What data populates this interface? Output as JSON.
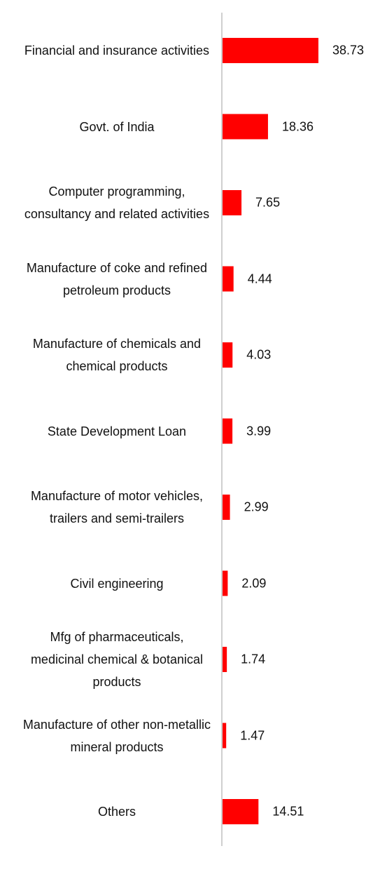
{
  "chart_data": {
    "type": "bar",
    "orientation": "horizontal",
    "color": "#ff0000",
    "categories": [
      "Financial and insurance activities",
      "Govt. of India",
      "Computer programming, consultancy and related activities",
      "Manufacture of coke and refined petroleum products",
      "Manufacture of chemicals and chemical products",
      "State Development Loan",
      "Manufacture of motor vehicles, trailers and semi-trailers",
      "Civil engineering",
      "Mfg of pharmaceuticals, medicinal chemical & botanical products",
      "Manufacture of other non-metallic mineral products",
      "Others"
    ],
    "values": [
      38.73,
      18.36,
      7.65,
      4.44,
      4.03,
      3.99,
      2.99,
      2.09,
      1.74,
      1.47,
      14.51
    ]
  }
}
